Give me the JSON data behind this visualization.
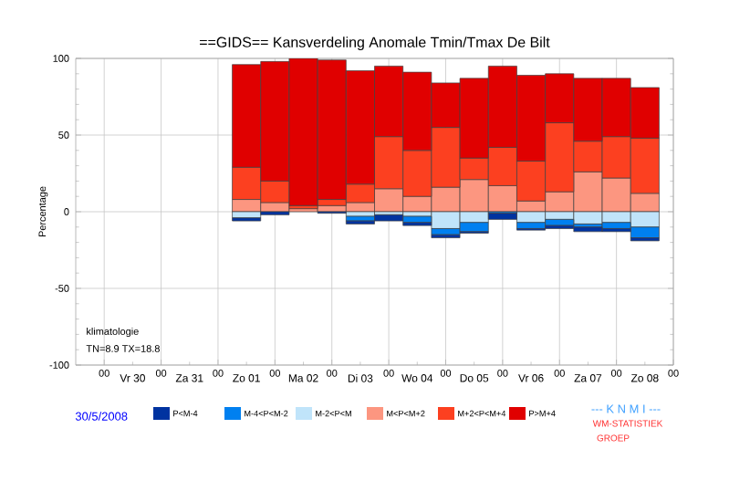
{
  "chart_data": {
    "type": "bar",
    "stacked": true,
    "title": "==GIDS== Kansverdeling Anomale Tmin/Tmax De Bilt",
    "ylabel": "Percentage",
    "x": [
      "2008-06-01T12:00",
      "2008-06-02T00:00",
      "2008-06-02T12:00",
      "2008-06-03T00:00",
      "2008-06-03T12:00",
      "2008-06-04T00:00",
      "2008-06-04T12:00",
      "2008-06-05T00:00",
      "2008-06-05T12:00",
      "2008-06-06T00:00",
      "2008-06-06T12:00",
      "2008-06-07T00:00",
      "2008-06-07T12:00",
      "2008-06-08T00:00",
      "2008-06-08T12:00"
    ],
    "series": [
      {
        "name": "M<P<M+2",
        "color": "#fc9680",
        "values": [
          8,
          6,
          2,
          4,
          6,
          15,
          10,
          16,
          21,
          17,
          7,
          13,
          26,
          22,
          12
        ]
      },
      {
        "name": "M+2<P<M+4",
        "color": "#fc4020",
        "values": [
          21,
          14,
          2,
          4,
          12,
          34,
          30,
          39,
          14,
          25,
          26,
          45,
          20,
          27,
          36
        ]
      },
      {
        "name": "P>M+4",
        "color": "#e00000",
        "values": [
          67,
          78,
          96,
          91,
          74,
          46,
          51,
          29,
          52,
          53,
          56,
          32,
          41,
          38,
          33
        ]
      },
      {
        "name": "M-2<P<M",
        "color": "#c0e4fa",
        "values": [
          -4,
          0,
          0,
          0,
          -3,
          -2,
          -3,
          -11,
          -7,
          0,
          -7,
          -5,
          -8,
          -7,
          -10
        ]
      },
      {
        "name": "M-4<P<M-2",
        "color": "#0080f0",
        "values": [
          0,
          0,
          0,
          0,
          -3,
          0,
          -4,
          -4,
          -6,
          -1,
          -4,
          -4,
          -2,
          -4,
          -7
        ]
      },
      {
        "name": "P<M-4",
        "color": "#0033a0",
        "values": [
          -2,
          -2,
          0,
          -1,
          -2,
          -4,
          -2,
          -2,
          -1,
          -4,
          -1,
          -2,
          -3,
          -2,
          -2
        ]
      }
    ],
    "xlim": [
      "2008-05-29T12:00",
      "2008-06-09T00:00"
    ],
    "xticks": [
      {
        "value": "2008-05-30T00:00",
        "label": "00"
      },
      {
        "value": "2008-05-30T12:00",
        "label": "Vr 30"
      },
      {
        "value": "2008-05-31T00:00",
        "label": "00"
      },
      {
        "value": "2008-05-31T12:00",
        "label": "Za 31"
      },
      {
        "value": "2008-06-01T00:00",
        "label": "00"
      },
      {
        "value": "2008-06-01T12:00",
        "label": "Zo 01"
      },
      {
        "value": "2008-06-02T00:00",
        "label": "00"
      },
      {
        "value": "2008-06-02T12:00",
        "label": "Ma 02"
      },
      {
        "value": "2008-06-03T00:00",
        "label": "00"
      },
      {
        "value": "2008-06-03T12:00",
        "label": "Di 03"
      },
      {
        "value": "2008-06-04T00:00",
        "label": "00"
      },
      {
        "value": "2008-06-04T12:00",
        "label": "Wo 04"
      },
      {
        "value": "2008-06-05T00:00",
        "label": "00"
      },
      {
        "value": "2008-06-05T12:00",
        "label": "Do 05"
      },
      {
        "value": "2008-06-06T00:00",
        "label": "00"
      },
      {
        "value": "2008-06-06T12:00",
        "label": "Vr 06"
      },
      {
        "value": "2008-06-07T00:00",
        "label": "00"
      },
      {
        "value": "2008-06-07T12:00",
        "label": "Za 07"
      },
      {
        "value": "2008-06-08T00:00",
        "label": "00"
      },
      {
        "value": "2008-06-08T12:00",
        "label": "Zo 08"
      },
      {
        "value": "2008-06-09T00:00",
        "label": "00"
      }
    ],
    "ylim": [
      -100,
      100
    ],
    "yticks": [
      -100,
      -50,
      0,
      50,
      100
    ],
    "grid": true,
    "legend": "bottom",
    "annotations": [
      "klimatologie",
      "TN=8.9  TX=18.8",
      "30/5/2008",
      "--- K N M I ---",
      "WM-STATISTIEK",
      "GROEP"
    ]
  }
}
